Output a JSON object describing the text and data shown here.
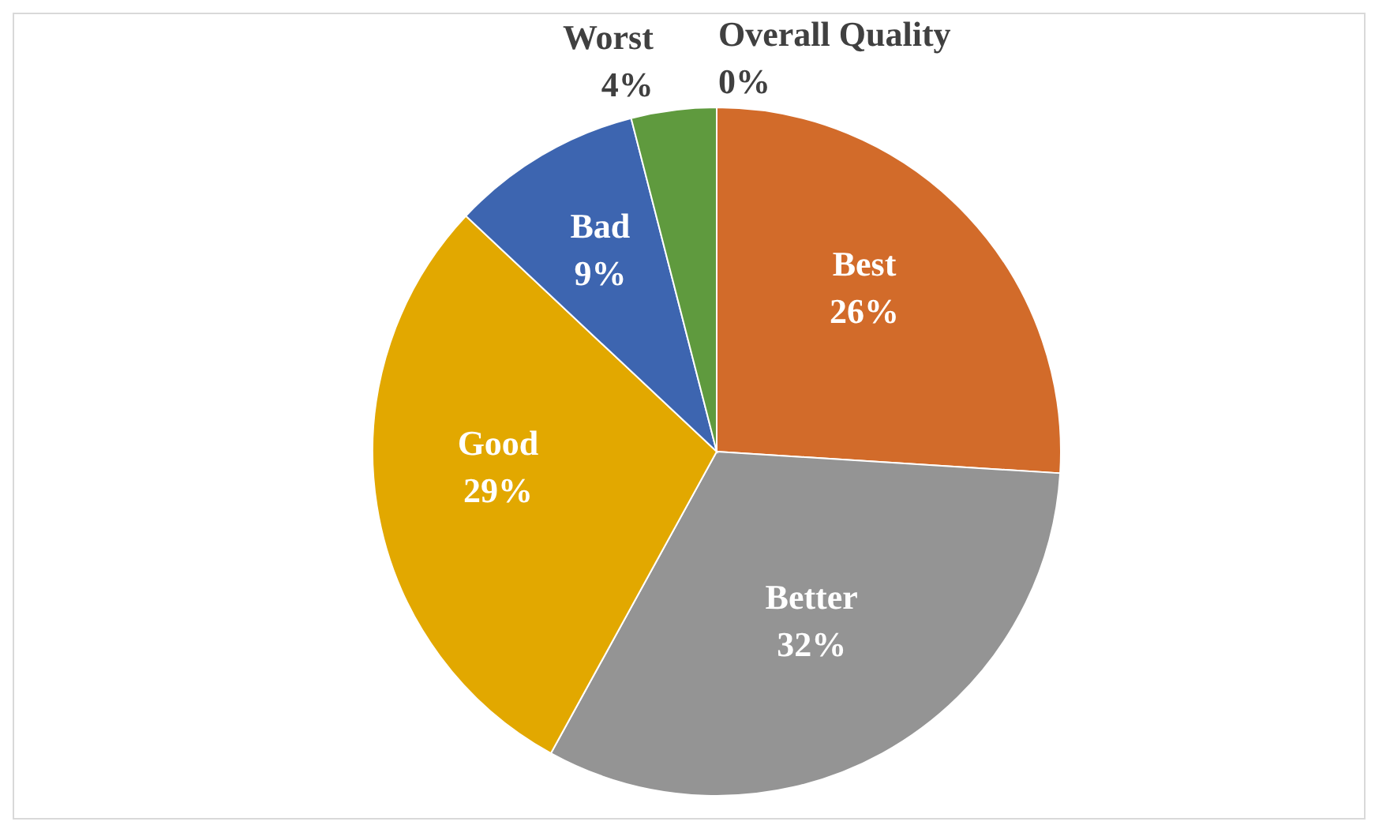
{
  "chart_data": {
    "type": "pie",
    "categories": [
      "Overall Quality",
      "Best",
      "Better",
      "Good",
      "Bad",
      "Worst"
    ],
    "values": [
      0,
      26,
      32,
      29,
      9,
      4
    ],
    "value_labels": [
      "0%",
      "26%",
      "32%",
      "29%",
      "9%",
      "4%"
    ],
    "colors": [
      "#4472c4",
      "#d26b2a",
      "#949494",
      "#e2a800",
      "#3d65b0",
      "#5f9a3e"
    ],
    "legend": false
  }
}
